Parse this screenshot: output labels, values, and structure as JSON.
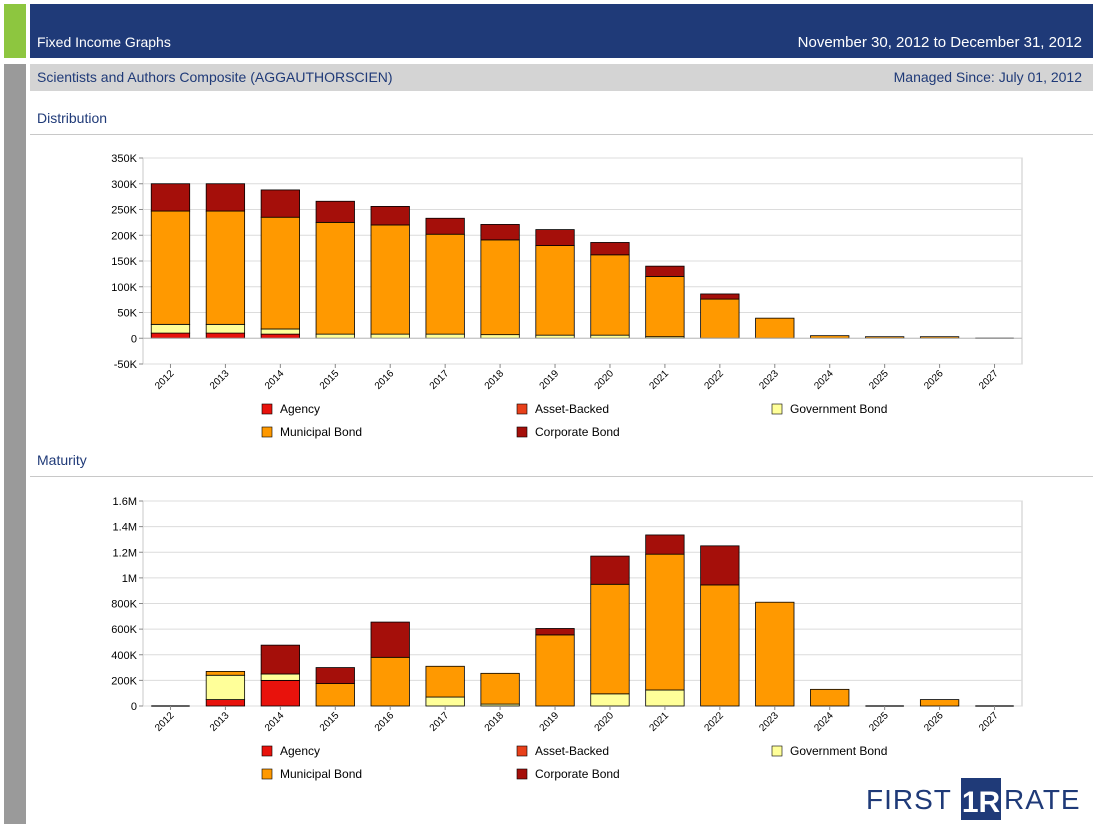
{
  "header": {
    "title": "Fixed Income Graphs",
    "date_range": "November 30, 2012 to December 31, 2012"
  },
  "subheader": {
    "portfolio": "Scientists and Authors Composite (AGGAUTHORSCIEN)",
    "managed_since": "Managed Since:  July 01, 2012"
  },
  "logo": {
    "left": "FIRST",
    "mark": "1R",
    "right": "RATE"
  },
  "colors": {
    "header_bg": "#1f3a78",
    "accent_green": "#8dc63f",
    "side_gray": "#9a9a9a",
    "agency": "#e8120c",
    "asset_backed": "#e8401a",
    "government_bond": "#ffff99",
    "municipal_bond": "#ff9900",
    "corporate_bond": "#a50f0a"
  },
  "chart_data": [
    {
      "section_title": "Distribution",
      "type": "bar",
      "stacked": true,
      "categories": [
        "2012",
        "2013",
        "2014",
        "2015",
        "2016",
        "2017",
        "2018",
        "2019",
        "2020",
        "2021",
        "2022",
        "2023",
        "2024",
        "2025",
        "2026",
        "2027"
      ],
      "ylim": [
        -50000,
        350000
      ],
      "yticks": [
        -50000,
        0,
        50000,
        100000,
        150000,
        200000,
        250000,
        300000,
        350000
      ],
      "ytick_labels": [
        "-50K",
        "0",
        "50K",
        "100K",
        "150K",
        "200K",
        "250K",
        "300K",
        "350K"
      ],
      "grid": true,
      "legend_position": "bottom",
      "series": [
        {
          "name": "Agency",
          "color": "#e8120c",
          "values": [
            10000,
            10000,
            8000,
            0,
            0,
            0,
            0,
            0,
            0,
            0,
            0,
            0,
            0,
            0,
            0,
            0
          ]
        },
        {
          "name": "Asset-Backed",
          "color": "#e8401a",
          "values": [
            0,
            0,
            0,
            0,
            0,
            0,
            0,
            0,
            0,
            0,
            0,
            0,
            0,
            0,
            0,
            0
          ]
        },
        {
          "name": "Government Bond",
          "color": "#ffff99",
          "values": [
            17000,
            17000,
            10000,
            8000,
            8000,
            8000,
            7000,
            6000,
            6000,
            3000,
            0,
            0,
            0,
            0,
            0,
            0
          ]
        },
        {
          "name": "Municipal Bond",
          "color": "#ff9900",
          "values": [
            220000,
            220000,
            217000,
            217000,
            212000,
            194000,
            184000,
            174000,
            156000,
            117000,
            76000,
            39000,
            5000,
            3000,
            3000,
            0
          ]
        },
        {
          "name": "Corporate Bond",
          "color": "#a50f0a",
          "values": [
            53000,
            53000,
            53000,
            41000,
            36000,
            31000,
            30000,
            31000,
            24000,
            20000,
            10000,
            0,
            0,
            0,
            0,
            0
          ]
        }
      ]
    },
    {
      "section_title": "Maturity",
      "type": "bar",
      "stacked": true,
      "categories": [
        "2012",
        "2013",
        "2014",
        "2015",
        "2016",
        "2017",
        "2018",
        "2019",
        "2020",
        "2021",
        "2022",
        "2023",
        "2024",
        "2025",
        "2026",
        "2027"
      ],
      "ylim": [
        0,
        1600000
      ],
      "yticks": [
        0,
        200000,
        400000,
        600000,
        800000,
        1000000,
        1200000,
        1400000,
        1600000
      ],
      "ytick_labels": [
        "0",
        "200K",
        "400K",
        "600K",
        "800K",
        "1M",
        "1.2M",
        "1.4M",
        "1.6M"
      ],
      "grid": true,
      "legend_position": "bottom",
      "series": [
        {
          "name": "Agency",
          "color": "#e8120c",
          "values": [
            0,
            50000,
            200000,
            0,
            0,
            0,
            0,
            0,
            0,
            0,
            0,
            0,
            0,
            0,
            0,
            0
          ]
        },
        {
          "name": "Asset-Backed",
          "color": "#e8401a",
          "values": [
            0,
            0,
            0,
            0,
            0,
            0,
            0,
            0,
            0,
            0,
            0,
            0,
            0,
            0,
            0,
            0
          ]
        },
        {
          "name": "Government Bond",
          "color": "#ffff99",
          "values": [
            0,
            190000,
            50000,
            0,
            0,
            70000,
            15000,
            0,
            95000,
            125000,
            0,
            0,
            0,
            0,
            0,
            0
          ]
        },
        {
          "name": "Municipal Bond",
          "color": "#ff9900",
          "values": [
            0,
            30000,
            0,
            175000,
            380000,
            240000,
            240000,
            555000,
            855000,
            1060000,
            945000,
            810000,
            130000,
            0,
            50000,
            0
          ]
        },
        {
          "name": "Corporate Bond",
          "color": "#a50f0a",
          "values": [
            0,
            0,
            225000,
            125000,
            275000,
            0,
            0,
            50000,
            220000,
            150000,
            305000,
            0,
            0,
            0,
            0,
            0
          ]
        }
      ]
    }
  ]
}
